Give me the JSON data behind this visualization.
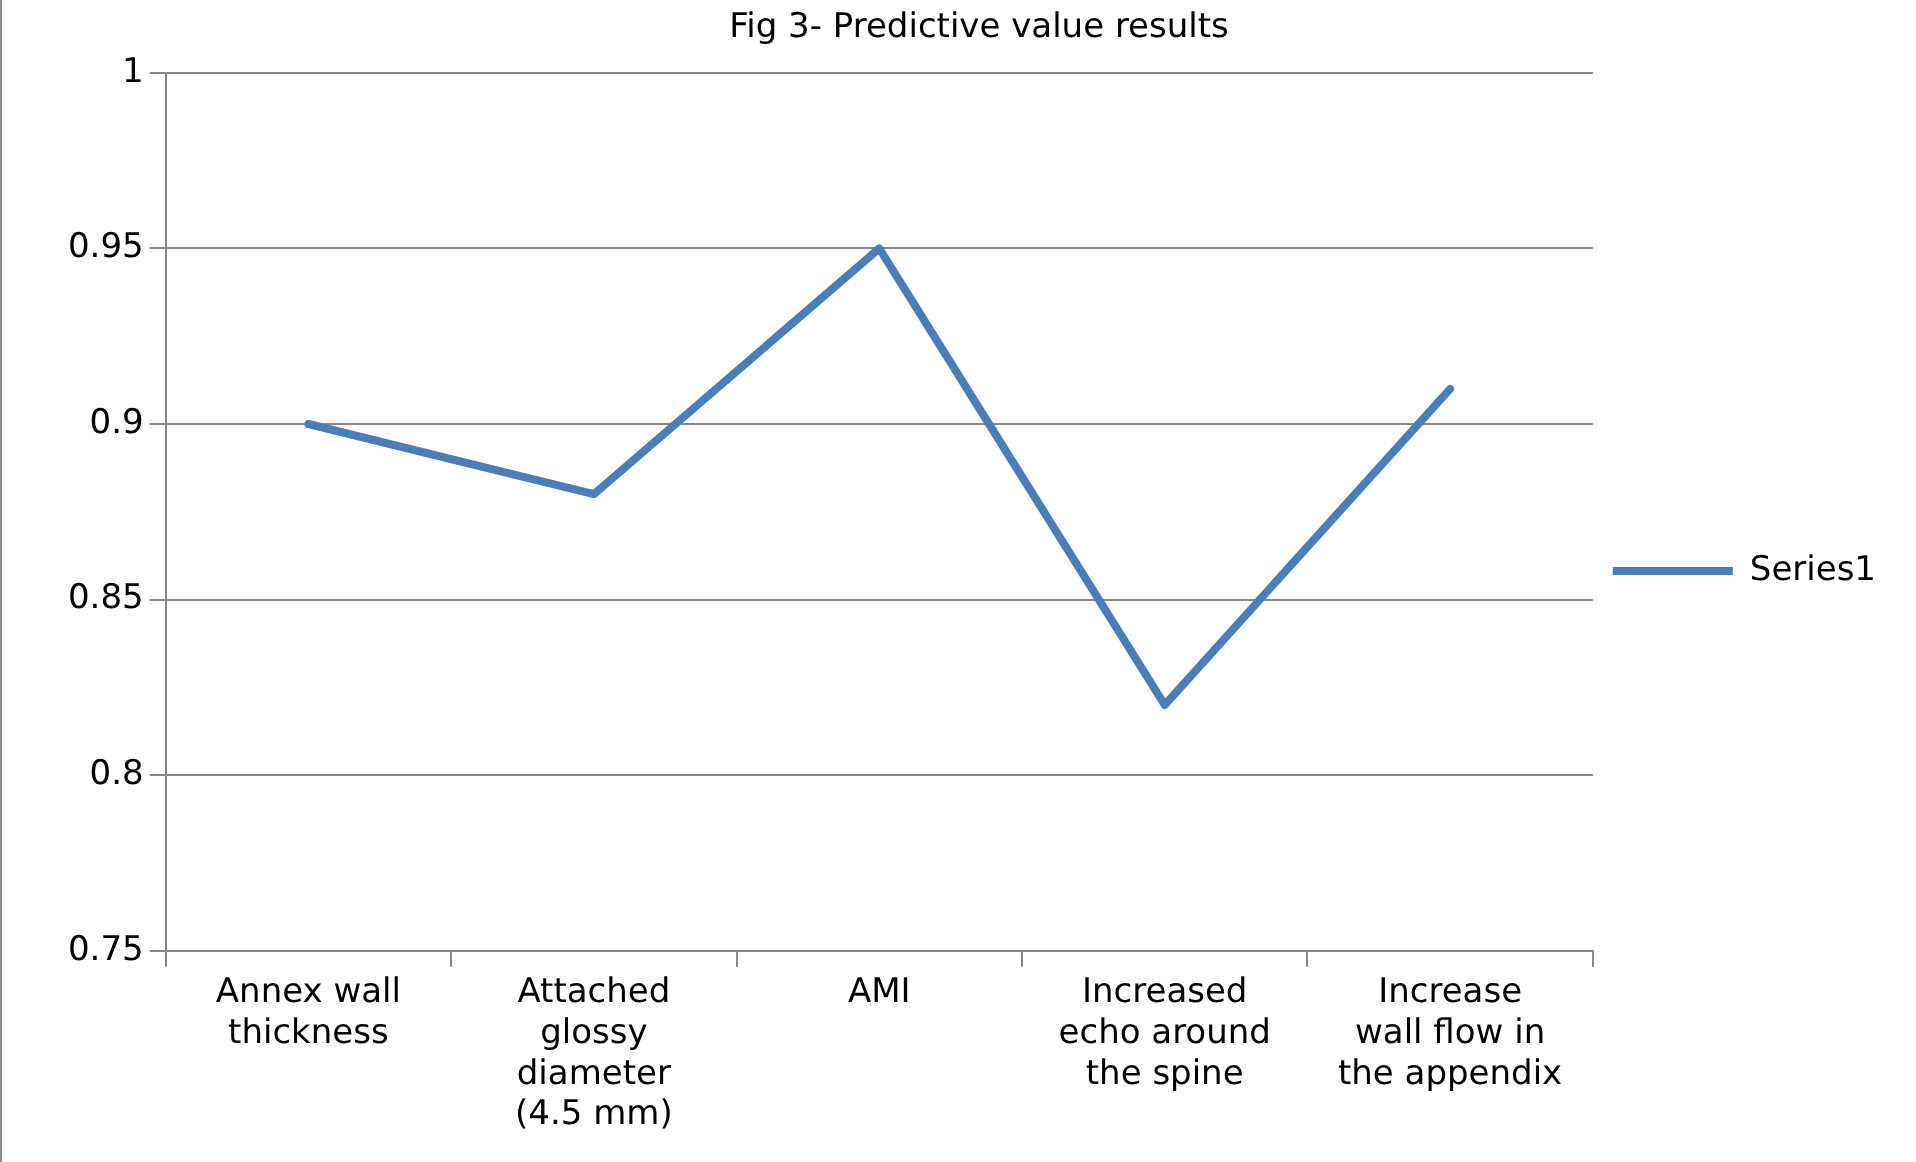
{
  "chart_data": {
    "type": "line",
    "title": "Fig 3- Predictive value results",
    "categories": [
      "Annex wall thickness",
      "Attached glossy diameter (4.5 mm)",
      "AMI",
      "Increased echo around the spine",
      "Increase wall flow in the appendix"
    ],
    "series": [
      {
        "name": "Series1",
        "color": "#4a7ebb",
        "values": [
          0.9,
          0.88,
          0.95,
          0.82,
          0.91
        ]
      }
    ],
    "ylim": [
      0.75,
      1
    ],
    "yticks": [
      0.75,
      0.8,
      0.85,
      0.9,
      0.95,
      1
    ],
    "grid": "y",
    "legend": "right",
    "marker": "none",
    "line_style": "solid"
  }
}
